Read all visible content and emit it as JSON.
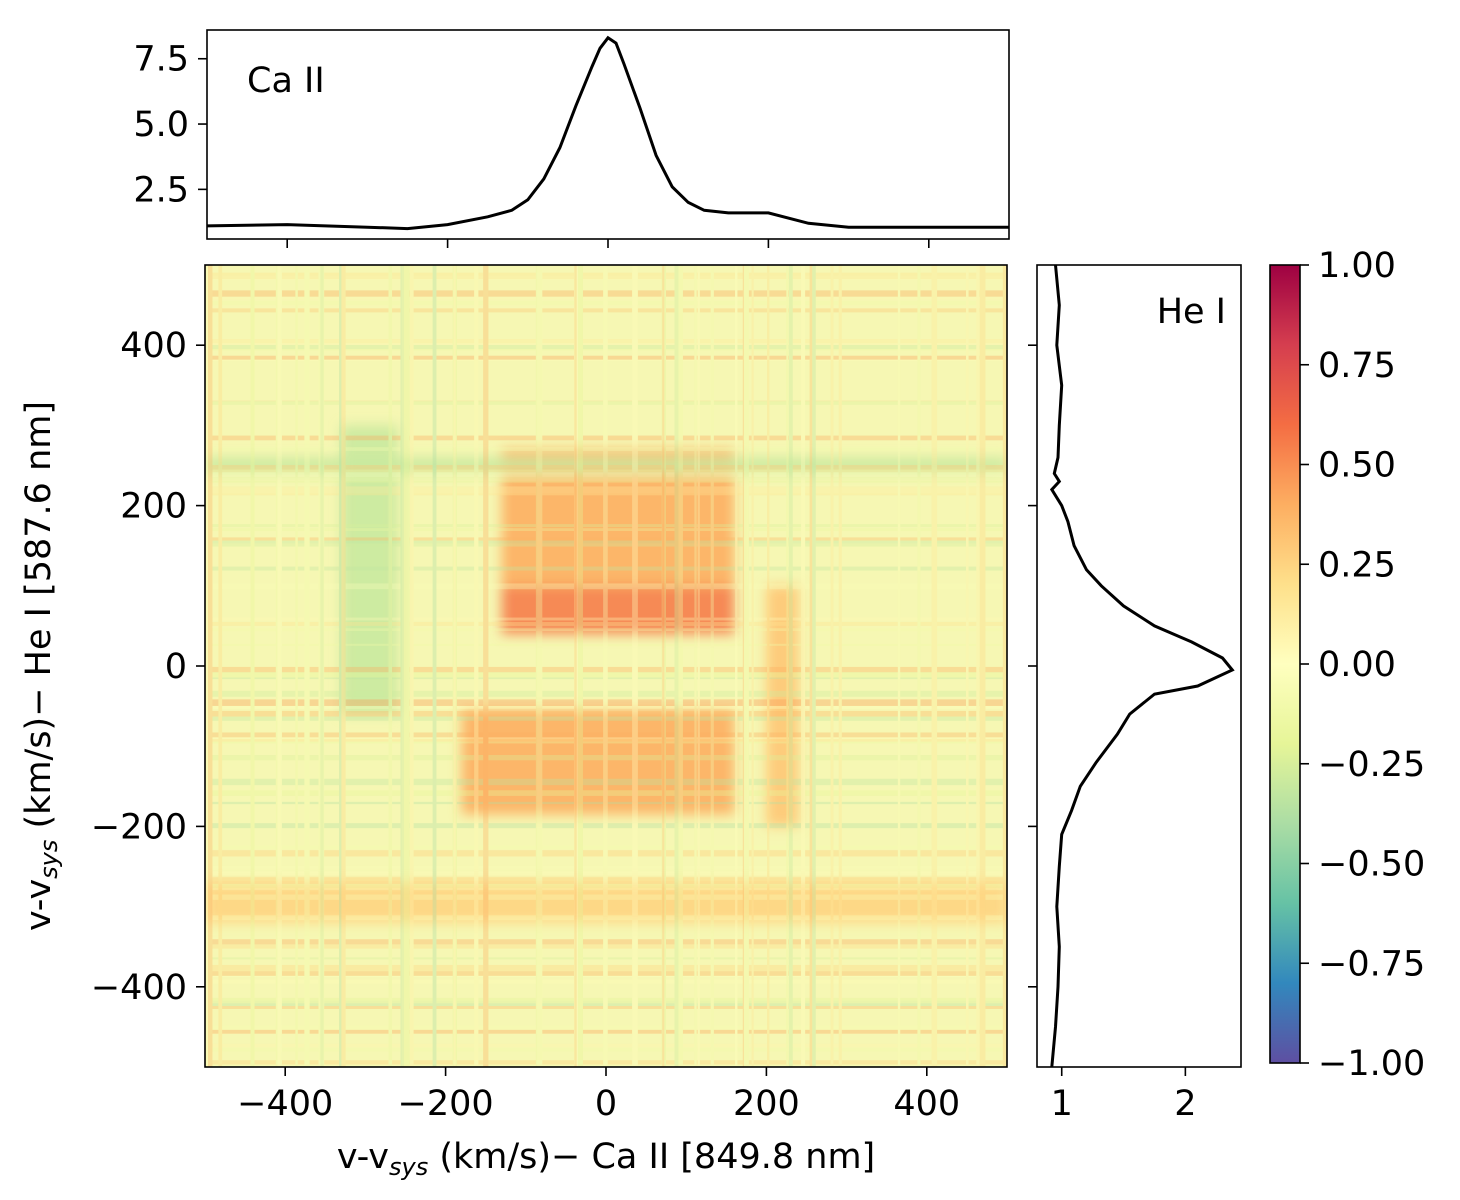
{
  "chart_data": [
    {
      "id": "heatmap",
      "type": "heatmap",
      "title": "",
      "xlabel": {
        "main": "v-v",
        "sub": "sys",
        "rest": " (km/s)− Ca II [849.8 nm]"
      },
      "ylabel": {
        "main": "v-v",
        "sub": "sys",
        "rest": " (km/s)− He I [587.6 nm]"
      },
      "xlim": [
        -500,
        500
      ],
      "ylim": [
        -500,
        500
      ],
      "xticks": [
        -400,
        -200,
        0,
        200,
        400
      ],
      "yticks": [
        -400,
        -200,
        0,
        200,
        400
      ],
      "xtick_labels": [
        "−400",
        "−200",
        "0",
        "200",
        "400"
      ],
      "ytick_labels": [
        "−400",
        "−200",
        "0",
        "200",
        "400"
      ],
      "colormap": "Spectral_r",
      "value_range": [
        -1.0,
        1.0
      ],
      "features": [
        {
          "x": [
            -130,
            160
          ],
          "y": [
            40,
            100
          ],
          "value": 0.55
        },
        {
          "x": [
            -130,
            160
          ],
          "y": [
            100,
            270
          ],
          "value": 0.4
        },
        {
          "x": [
            -180,
            160
          ],
          "y": [
            -185,
            -55
          ],
          "value": 0.4
        },
        {
          "x": [
            200,
            240
          ],
          "y": [
            -200,
            100
          ],
          "value": 0.3
        },
        {
          "x": [
            -500,
            500
          ],
          "y": [
            -320,
            -270
          ],
          "value": 0.25
        },
        {
          "x": [
            -330,
            -260
          ],
          "y": [
            -60,
            300
          ],
          "value": -0.3
        },
        {
          "x": [
            -500,
            500
          ],
          "y": [
            240,
            260
          ],
          "value": -0.3
        }
      ]
    },
    {
      "id": "top-profile",
      "type": "line",
      "label": "Ca II",
      "xlim": [
        -500,
        500
      ],
      "ylim": [
        0.6,
        8.6
      ],
      "yticks": [
        2.5,
        5.0,
        7.5
      ],
      "ytick_labels": [
        "2.5",
        "5.0",
        "7.5"
      ],
      "xticks": [
        -400,
        -200,
        0,
        200,
        400
      ],
      "x": [
        -500,
        -400,
        -300,
        -250,
        -200,
        -150,
        -120,
        -100,
        -80,
        -60,
        -40,
        -20,
        -10,
        0,
        10,
        20,
        40,
        60,
        80,
        100,
        120,
        150,
        200,
        250,
        300,
        400,
        500
      ],
      "y": [
        1.1,
        1.15,
        1.05,
        1.0,
        1.15,
        1.45,
        1.7,
        2.1,
        2.9,
        4.1,
        5.7,
        7.2,
        7.9,
        8.3,
        8.1,
        7.3,
        5.6,
        3.8,
        2.6,
        2.0,
        1.7,
        1.6,
        1.6,
        1.2,
        1.05,
        1.05,
        1.05
      ]
    },
    {
      "id": "right-profile",
      "type": "line",
      "orientation": "vertical",
      "label": "He I",
      "xlim": [
        0.8,
        2.45
      ],
      "ylim": [
        -500,
        500
      ],
      "xticks": [
        1,
        2
      ],
      "xtick_labels": [
        "1",
        "2"
      ],
      "yticks": [
        -400,
        -200,
        0,
        200,
        400
      ],
      "x": [
        0.95,
        0.98,
        0.96,
        1.0,
        0.98,
        0.97,
        0.94,
        0.98,
        0.92,
        1.0,
        1.05,
        1.1,
        1.2,
        1.32,
        1.5,
        1.75,
        2.05,
        2.3,
        2.38,
        2.1,
        1.75,
        1.55,
        1.45,
        1.28,
        1.15,
        1.08,
        1.0,
        0.98,
        0.96,
        0.98,
        0.97,
        0.95,
        0.92
      ],
      "y": [
        500,
        450,
        400,
        350,
        300,
        260,
        240,
        230,
        220,
        200,
        180,
        150,
        120,
        100,
        75,
        50,
        30,
        10,
        -5,
        -25,
        -35,
        -60,
        -85,
        -120,
        -150,
        -180,
        -210,
        -250,
        -300,
        -350,
        -400,
        -450,
        -500
      ]
    },
    {
      "id": "colorbar",
      "type": "colorbar",
      "range": [
        -1.0,
        1.0
      ],
      "ticks": [
        1.0,
        0.75,
        0.5,
        0.25,
        0.0,
        -0.25,
        -0.5,
        -0.75,
        -1.0
      ],
      "tick_labels": [
        "1.00",
        "0.75",
        "0.50",
        "0.25",
        "0.00",
        "−0.25",
        "−0.50",
        "−0.75",
        "−1.00"
      ],
      "colors": [
        "#5e4fa2",
        "#3288bd",
        "#66c2a5",
        "#abdda4",
        "#e6f598",
        "#ffffbf",
        "#fee08b",
        "#fdae61",
        "#f46d43",
        "#d53e4f",
        "#9e0142"
      ]
    }
  ]
}
